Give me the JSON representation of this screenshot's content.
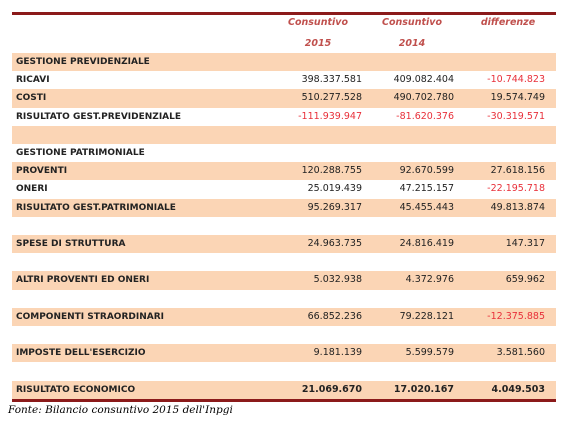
{
  "header": {
    "row1": [
      "Consuntivo",
      "Consuntivo",
      "differenze"
    ],
    "row2": [
      "2015",
      "2014"
    ]
  },
  "table": {
    "rows": [
      [
        "GESTIONE PREVIDENZIALE"
      ],
      [
        "RICAVI",
        "398.337.581",
        "409.082.404",
        "-10.744.823"
      ],
      [
        "COSTI",
        "510.277.528",
        "490.702.780",
        "19.574.749"
      ],
      [
        "RISULTATO GEST.PREVIDENZIALE",
        "-111.939.947",
        "-81.620.376",
        "-30.319.571"
      ],
      null,
      [
        "GESTIONE PATRIMONIALE"
      ],
      [
        "PROVENTI",
        "120.288.755",
        "92.670.599",
        "27.618.156"
      ],
      [
        "ONERI",
        "25.019.439",
        "47.215.157",
        "-22.195.718"
      ],
      [
        "RISULTATO GEST.PATRIMONIALE",
        "95.269.317",
        "45.455.443",
        "49.813.874"
      ],
      null,
      [
        "SPESE DI STRUTTURA",
        "24.963.735",
        "24.816.419",
        "147.317"
      ],
      null,
      [
        "ALTRI PROVENTI ED ONERI",
        "5.032.938",
        "4.372.976",
        "659.962"
      ],
      null,
      [
        "COMPONENTI STRAORDINARI",
        "66.852.236",
        "79.228.121",
        "-12.375.885"
      ],
      null,
      [
        "IMPOSTE DELL'ESERCIZIO",
        "9.181.139",
        "5.599.579",
        "3.581.560"
      ],
      null,
      [
        "RISULTATO ECONOMICO",
        "21.069.670",
        "17.020.167",
        "4.049.503"
      ]
    ]
  },
  "source": "Fonte: Bilancio consuntivo 2015 dell'Inpgi"
}
